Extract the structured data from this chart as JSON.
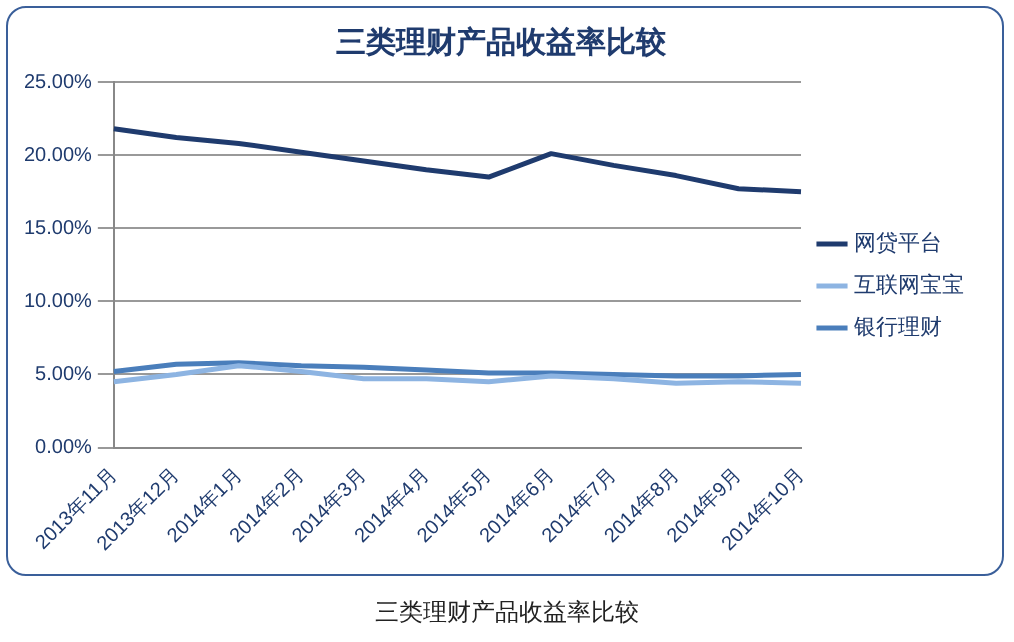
{
  "chart_data": {
    "type": "line",
    "title": "三类理财产品收益率比较",
    "categories": [
      "2013年11月",
      "2013年12月",
      "2014年1月",
      "2014年2月",
      "2014年3月",
      "2014年4月",
      "2014年5月",
      "2014年6月",
      "2014年7月",
      "2014年8月",
      "2014年9月",
      "2014年10月"
    ],
    "series": [
      {
        "name": "网贷平台",
        "color": "#1f3b6e",
        "values": [
          21.8,
          21.2,
          20.8,
          20.2,
          19.6,
          19.0,
          18.5,
          20.1,
          19.3,
          18.6,
          17.7,
          17.5
        ]
      },
      {
        "name": "互联网宝宝",
        "color": "#8db4e2",
        "values": [
          4.5,
          5.0,
          5.6,
          5.2,
          4.7,
          4.7,
          4.5,
          4.9,
          4.7,
          4.4,
          4.5,
          4.4
        ]
      },
      {
        "name": "银行理财",
        "color": "#4a7ebb",
        "values": [
          5.2,
          5.7,
          5.8,
          5.6,
          5.5,
          5.3,
          5.1,
          5.1,
          5.0,
          4.9,
          4.9,
          5.0
        ]
      }
    ],
    "ylim": [
      0,
      25
    ],
    "yticks": [
      {
        "value": 0,
        "label": "0.00%"
      },
      {
        "value": 5,
        "label": "5.00%"
      },
      {
        "value": 10,
        "label": "10.00%"
      },
      {
        "value": 15,
        "label": "15.00%"
      },
      {
        "value": 20,
        "label": "20.00%"
      },
      {
        "value": 25,
        "label": "25.00%"
      }
    ],
    "grid": "y",
    "legend": "right",
    "marker": "none",
    "line_style": "solid",
    "annotations": [
      "三类理财产品收益率比较"
    ]
  }
}
